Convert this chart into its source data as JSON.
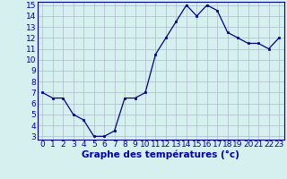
{
  "x": [
    0,
    1,
    2,
    3,
    4,
    5,
    6,
    7,
    8,
    9,
    10,
    11,
    12,
    13,
    14,
    15,
    16,
    17,
    18,
    19,
    20,
    21,
    22,
    23
  ],
  "y": [
    7.0,
    6.5,
    6.5,
    5.0,
    4.5,
    3.0,
    3.0,
    3.5,
    6.5,
    6.5,
    7.0,
    10.5,
    12.0,
    13.5,
    15.0,
    14.0,
    15.0,
    14.5,
    12.5,
    12.0,
    11.5,
    11.5,
    11.0,
    12.0
  ],
  "xlabel": "Graphe des températures (°c)",
  "ylim_min": 3,
  "ylim_max": 15,
  "xlim_min": 0,
  "xlim_max": 23,
  "yticks": [
    3,
    4,
    5,
    6,
    7,
    8,
    9,
    10,
    11,
    12,
    13,
    14,
    15
  ],
  "xticks": [
    0,
    1,
    2,
    3,
    4,
    5,
    6,
    7,
    8,
    9,
    10,
    11,
    12,
    13,
    14,
    15,
    16,
    17,
    18,
    19,
    20,
    21,
    22,
    23
  ],
  "line_color": "#00008b",
  "marker": "s",
  "marker_size": 2.0,
  "bg_color": "#d6f0f0",
  "grid_color": "#b0b8cc",
  "tick_label_color": "#0000aa",
  "xlabel_fontsize": 7.5,
  "tick_fontsize": 6.5,
  "xlabel_fontweight": "bold"
}
